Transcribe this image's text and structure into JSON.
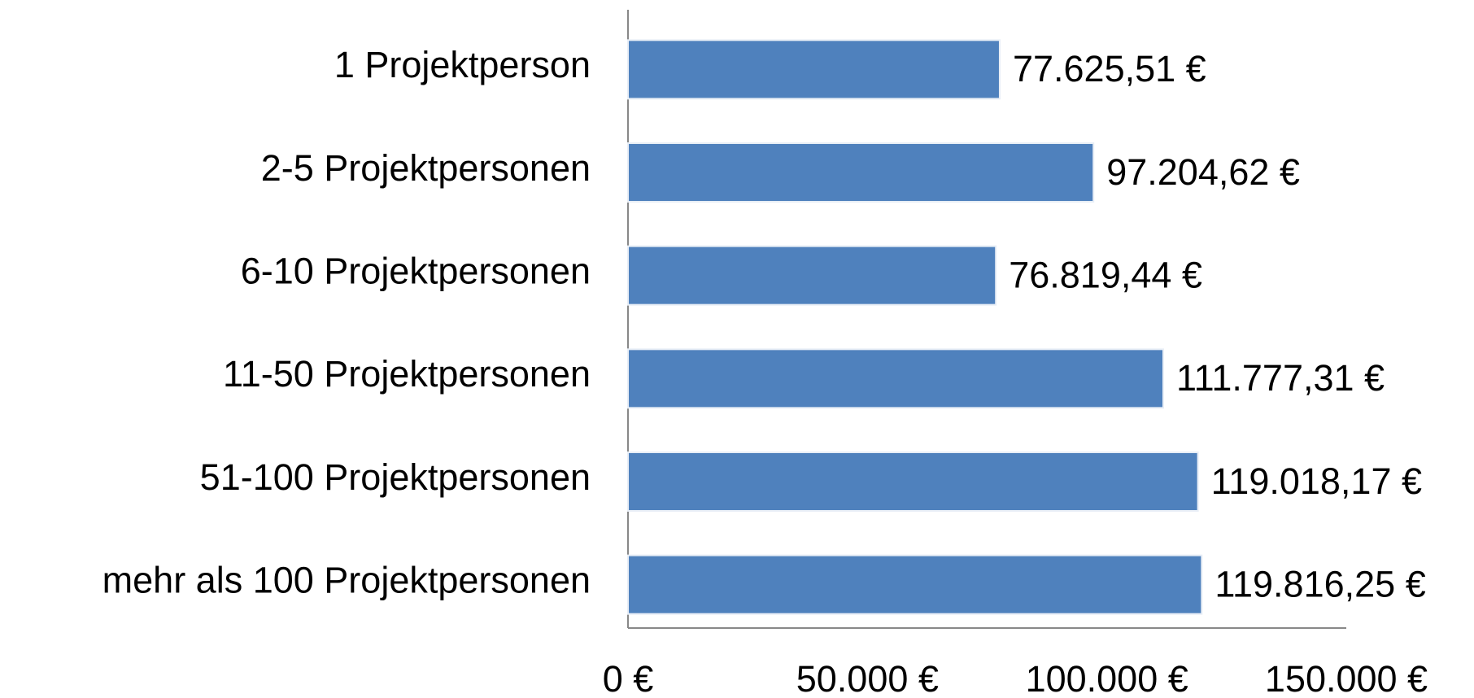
{
  "chart_data": {
    "type": "barh",
    "categories": [
      "1 Projektperson",
      "2-5 Projektpersonen",
      "6-10 Projektpersonen",
      "11-50 Projektpersonen",
      "51-100 Projektpersonen",
      "mehr als 100 Projektpersonen"
    ],
    "values": [
      77625.51,
      97204.62,
      76819.44,
      111777.31,
      119018.17,
      119816.25
    ],
    "value_labels": [
      "77.625,51 €",
      "97.204,62 €",
      "76.819,44 €",
      "111.777,31 €",
      "119.018,17 €",
      "119.816,25 €"
    ],
    "color": "#4f81bd",
    "xlim": [
      0,
      150000
    ],
    "xticks": [
      {
        "value": 0,
        "label": "0 €"
      },
      {
        "value": 50000,
        "label": "50.000 €"
      },
      {
        "value": 100000,
        "label": "100.000 €"
      },
      {
        "value": 150000,
        "label": "150.000 €"
      }
    ],
    "grid": false
  }
}
